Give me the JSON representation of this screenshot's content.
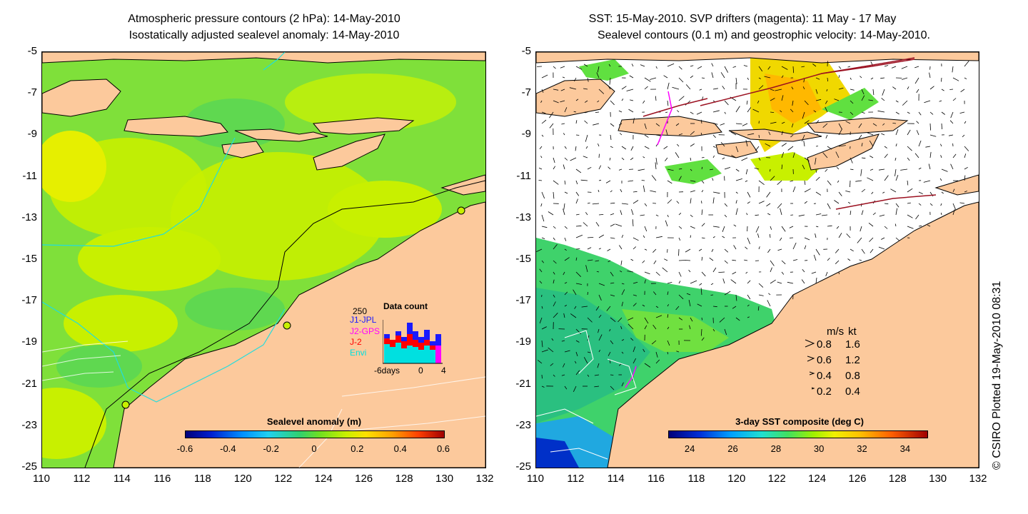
{
  "left_panel": {
    "title_line1": "Atmospheric pressure contours (2 hPa): 14-May-2010",
    "title_line2": "Isostatically adjusted sealevel anomaly: 14-May-2010",
    "colorbar": {
      "title": "Sealevel anomaly (m)",
      "ticks": [
        "-0.6",
        "-0.4",
        "-0.2",
        "0",
        "0.2",
        "0.4",
        "0.6"
      ],
      "range": [
        -0.6,
        0.6
      ]
    },
    "data_count": {
      "title": "Data count",
      "ymax_label": "250",
      "series": [
        {
          "name": "J1-JPL",
          "color": "#1a1aff"
        },
        {
          "name": "J2-GPS",
          "color": "#ff00ff"
        },
        {
          "name": "J-2",
          "color": "#ff0000"
        },
        {
          "name": "Envi",
          "color": "#00e0e0"
        }
      ],
      "x_labels": [
        "-6days",
        "0",
        "4"
      ]
    }
  },
  "right_panel": {
    "title_line1": "SST: 15-May-2010. SVP drifters (magenta): 11 May - 17 May",
    "title_line2": "Sealevel contours (0.1 m) and geostrophic velocity: 14-May-2010.",
    "colorbar": {
      "title": "3-day SST composite (deg C)",
      "ticks": [
        "24",
        "26",
        "28",
        "30",
        "32",
        "34"
      ],
      "range": [
        23,
        35
      ]
    },
    "velocity_legend": {
      "header_ms": "m/s",
      "header_kt": "kt",
      "rows": [
        {
          "ms": "0.8",
          "kt": "1.6"
        },
        {
          "ms": "0.6",
          "kt": "1.2"
        },
        {
          "ms": "0.4",
          "kt": "0.8"
        },
        {
          "ms": "0.2",
          "kt": "0.4"
        }
      ]
    }
  },
  "axes": {
    "y_ticks": [
      "-5",
      "-7",
      "-9",
      "-11",
      "-13",
      "-15",
      "-17",
      "-19",
      "-21",
      "-23",
      "-25"
    ],
    "x_ticks": [
      "110",
      "112",
      "114",
      "116",
      "118",
      "120",
      "122",
      "124",
      "126",
      "128",
      "130",
      "132"
    ],
    "lat_range": [
      -25,
      -5
    ],
    "lon_range": [
      110,
      132
    ]
  },
  "credit": "© CSIRO Plotted 19-May-2010 08:31",
  "colors": {
    "land": "#fcc99c",
    "sea_anomaly_green": "#7fe03a",
    "sea_anomaly_yellow": "#c8f000",
    "sst_green": "#3fd26b",
    "cloud_white": "#ffffff"
  }
}
